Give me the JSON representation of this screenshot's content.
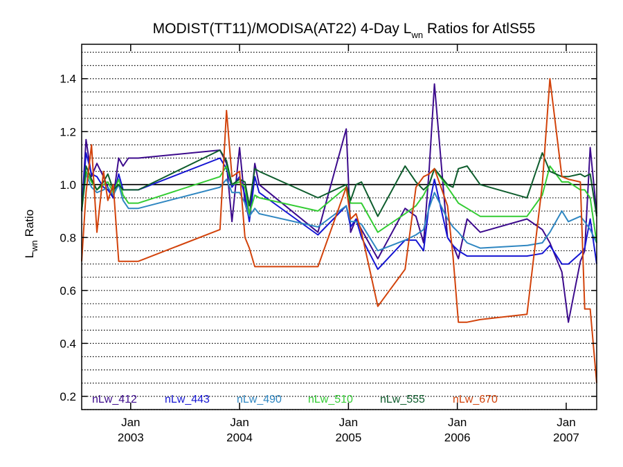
{
  "chart_data": {
    "type": "line",
    "title_main": "MODIST(TT11)/MODISA(AT22) 4-Day L",
    "title_sub": "wn",
    "title_rest": " Ratios for AtlS55",
    "ylabel_main": "L",
    "ylabel_sub": "wn",
    "ylabel_rest": " Ratio",
    "xlim": [
      2002.55,
      2007.28
    ],
    "ylim": [
      0.15,
      1.53
    ],
    "yticks": [
      0.2,
      0.4,
      0.6,
      0.8,
      1.0,
      1.2,
      1.4
    ],
    "ytick_labels": [
      "0.2",
      "0.4",
      "0.6",
      "0.8",
      "1.0",
      "1.2",
      "1.4"
    ],
    "dotted_gridlines": [
      0.15,
      0.2,
      0.25,
      0.3,
      0.35,
      0.4,
      0.45,
      0.5,
      0.55,
      0.6,
      0.65,
      0.7,
      0.75,
      0.8,
      0.85,
      0.9,
      0.95,
      1.05,
      1.1,
      1.15,
      1.2,
      1.25,
      1.3,
      1.35,
      1.4,
      1.45,
      1.5
    ],
    "reference_line": 1.0,
    "xticks": [
      {
        "x": 2003.0,
        "month": "Jan",
        "year": "2003"
      },
      {
        "x": 2004.0,
        "month": "Jan",
        "year": "2004"
      },
      {
        "x": 2005.0,
        "month": "Jan",
        "year": "2005"
      },
      {
        "x": 2006.0,
        "month": "Jan",
        "year": "2006"
      },
      {
        "x": 2007.0,
        "month": "Jan",
        "year": "2007"
      }
    ],
    "legend_position": "bottom",
    "series": [
      {
        "name": "nLw_412",
        "color": "#3c0a8c",
        "x": [
          2002.55,
          2002.59,
          2002.64,
          2002.69,
          2002.75,
          2002.79,
          2002.84,
          2002.89,
          2002.93,
          2002.98,
          2003.03,
          2003.07,
          2003.82,
          2003.88,
          2003.93,
          2004.0,
          2004.05,
          2004.09,
          2004.14,
          2004.18,
          2004.72,
          2004.98,
          2005.02,
          2005.07,
          2005.12,
          2005.27,
          2005.52,
          2005.62,
          2005.69,
          2005.74,
          2005.79,
          2005.91,
          2005.96,
          2006.01,
          2006.09,
          2006.21,
          2006.64,
          2006.78,
          2006.85,
          2006.96,
          2007.02,
          2007.13,
          2007.17,
          2007.22,
          2007.28
        ],
        "y": [
          0.9,
          1.17,
          1.03,
          1.08,
          1.03,
          0.99,
          0.95,
          1.1,
          1.07,
          1.1,
          1.1,
          1.1,
          1.13,
          1.08,
          0.86,
          1.14,
          0.93,
          0.87,
          1.08,
          1.0,
          0.82,
          1.21,
          0.82,
          0.87,
          0.83,
          0.72,
          0.91,
          0.88,
          0.78,
          1.05,
          1.38,
          0.8,
          0.77,
          0.72,
          0.87,
          0.82,
          0.87,
          0.83,
          0.78,
          0.67,
          0.48,
          0.71,
          0.75,
          1.14,
          0.89
        ]
      },
      {
        "name": "nLw_443",
        "color": "#1414d2",
        "x": [
          2002.55,
          2002.59,
          2002.64,
          2002.69,
          2002.75,
          2002.79,
          2002.84,
          2002.89,
          2002.93,
          2002.98,
          2003.03,
          2003.07,
          2003.82,
          2003.88,
          2003.93,
          2004.0,
          2004.05,
          2004.09,
          2004.14,
          2004.18,
          2004.72,
          2004.98,
          2005.02,
          2005.07,
          2005.12,
          2005.27,
          2005.52,
          2005.62,
          2005.69,
          2005.74,
          2005.79,
          2005.91,
          2005.96,
          2006.01,
          2006.09,
          2006.21,
          2006.64,
          2006.78,
          2006.85,
          2006.96,
          2007.02,
          2007.13,
          2007.17,
          2007.22,
          2007.28
        ],
        "y": [
          0.9,
          1.12,
          1.04,
          1.03,
          0.99,
          0.98,
          0.95,
          1.04,
          0.98,
          0.98,
          0.98,
          0.98,
          1.1,
          1.06,
          0.99,
          1.03,
          0.96,
          0.86,
          1.03,
          0.97,
          0.81,
          0.92,
          0.84,
          0.87,
          0.8,
          0.68,
          0.79,
          0.79,
          0.75,
          0.92,
          1.02,
          0.8,
          0.77,
          0.75,
          0.73,
          0.73,
          0.73,
          0.74,
          0.77,
          0.7,
          0.7,
          0.74,
          0.76,
          0.87,
          0.7
        ]
      },
      {
        "name": "nLw_490",
        "color": "#2e86c1",
        "x": [
          2002.55,
          2002.59,
          2002.64,
          2002.69,
          2002.75,
          2002.79,
          2002.84,
          2002.89,
          2002.93,
          2002.98,
          2003.03,
          2003.07,
          2003.82,
          2003.88,
          2003.93,
          2004.0,
          2004.05,
          2004.09,
          2004.14,
          2004.18,
          2004.72,
          2004.98,
          2005.02,
          2005.07,
          2005.12,
          2005.27,
          2005.52,
          2005.62,
          2005.69,
          2005.74,
          2005.79,
          2005.91,
          2005.96,
          2006.01,
          2006.09,
          2006.21,
          2006.64,
          2006.78,
          2006.85,
          2006.96,
          2007.02,
          2007.13,
          2007.17,
          2007.22,
          2007.28
        ],
        "y": [
          0.9,
          1.04,
          0.99,
          0.97,
          0.98,
          0.99,
          0.96,
          1.0,
          0.94,
          0.91,
          0.91,
          0.91,
          0.99,
          1.02,
          0.97,
          0.97,
          0.93,
          0.88,
          0.91,
          0.89,
          0.84,
          0.92,
          0.86,
          0.86,
          0.85,
          0.75,
          0.79,
          0.81,
          0.83,
          0.91,
          0.97,
          0.87,
          0.84,
          0.82,
          0.78,
          0.76,
          0.77,
          0.78,
          0.82,
          0.9,
          0.86,
          0.88,
          0.86,
          0.83,
          0.78
        ]
      },
      {
        "name": "nLw_510",
        "color": "#33cc33",
        "x": [
          2002.55,
          2002.59,
          2002.64,
          2002.69,
          2002.75,
          2002.79,
          2002.84,
          2002.89,
          2002.93,
          2002.98,
          2003.03,
          2003.07,
          2003.82,
          2003.88,
          2003.93,
          2004.0,
          2004.05,
          2004.09,
          2004.14,
          2004.18,
          2004.72,
          2004.98,
          2005.02,
          2005.07,
          2005.12,
          2005.27,
          2005.52,
          2005.62,
          2005.69,
          2005.74,
          2005.79,
          2005.91,
          2005.96,
          2006.01,
          2006.09,
          2006.21,
          2006.64,
          2006.78,
          2006.85,
          2006.96,
          2007.02,
          2007.13,
          2007.17,
          2007.22,
          2007.28
        ],
        "y": [
          0.9,
          1.05,
          1.01,
          0.98,
          1.0,
          1.01,
          0.97,
          1.02,
          0.96,
          0.93,
          0.93,
          0.93,
          1.03,
          1.07,
          1.0,
          1.01,
          0.99,
          0.89,
          0.96,
          0.95,
          0.9,
          0.99,
          0.93,
          0.93,
          0.93,
          0.82,
          0.89,
          0.92,
          0.96,
          1.0,
          1.06,
          0.99,
          0.96,
          0.93,
          0.91,
          0.88,
          0.88,
          0.96,
          1.07,
          1.01,
          1.01,
          0.98,
          0.98,
          0.95,
          0.78
        ]
      },
      {
        "name": "nLw_555",
        "color": "#0d5c2c",
        "x": [
          2002.55,
          2002.59,
          2002.64,
          2002.69,
          2002.75,
          2002.79,
          2002.84,
          2002.89,
          2002.93,
          2002.98,
          2003.03,
          2003.07,
          2003.82,
          2003.88,
          2003.93,
          2004.0,
          2004.05,
          2004.09,
          2004.14,
          2004.18,
          2004.72,
          2004.98,
          2005.02,
          2005.07,
          2005.12,
          2005.27,
          2005.52,
          2005.62,
          2005.69,
          2005.74,
          2005.79,
          2005.91,
          2005.96,
          2006.01,
          2006.09,
          2006.21,
          2006.64,
          2006.78,
          2006.85,
          2006.96,
          2007.02,
          2007.13,
          2007.17,
          2007.22,
          2007.28
        ],
        "y": [
          0.9,
          1.07,
          1.02,
          0.98,
          1.01,
          1.04,
          0.98,
          1.0,
          0.98,
          0.98,
          0.98,
          0.98,
          1.13,
          1.09,
          1.0,
          1.02,
          1.01,
          0.92,
          1.06,
          1.05,
          0.95,
          1.0,
          0.94,
          1.0,
          1.01,
          0.88,
          1.07,
          1.01,
          0.98,
          1.0,
          1.06,
          1.0,
          0.99,
          1.06,
          1.07,
          1.0,
          0.95,
          1.12,
          1.05,
          1.03,
          1.03,
          1.04,
          1.03,
          1.04,
          0.88
        ]
      },
      {
        "name": "nLw_670",
        "color": "#d2420a",
        "x": [
          2002.55,
          2002.59,
          2002.64,
          2002.69,
          2002.75,
          2002.79,
          2002.84,
          2002.89,
          2002.93,
          2002.98,
          2003.03,
          2003.07,
          2003.82,
          2003.88,
          2003.93,
          2004.0,
          2004.05,
          2004.09,
          2004.14,
          2004.18,
          2004.72,
          2004.98,
          2005.02,
          2005.07,
          2005.12,
          2005.27,
          2005.52,
          2005.62,
          2005.69,
          2005.74,
          2005.79,
          2005.91,
          2005.96,
          2006.01,
          2006.09,
          2006.21,
          2006.64,
          2006.78,
          2006.85,
          2006.96,
          2007.02,
          2007.13,
          2007.17,
          2007.22,
          2007.28
        ],
        "y": [
          0.71,
          0.97,
          1.15,
          0.82,
          1.05,
          0.94,
          1.0,
          0.71,
          0.71,
          0.71,
          0.71,
          0.71,
          0.83,
          1.28,
          1.03,
          1.05,
          0.8,
          0.76,
          0.69,
          0.69,
          0.69,
          0.99,
          0.87,
          0.89,
          0.82,
          0.54,
          0.68,
          0.99,
          1.03,
          1.04,
          1.06,
          0.92,
          0.73,
          0.48,
          0.48,
          0.49,
          0.51,
          1.0,
          1.4,
          1.03,
          1.02,
          1.01,
          0.53,
          0.53,
          0.25
        ]
      }
    ]
  }
}
